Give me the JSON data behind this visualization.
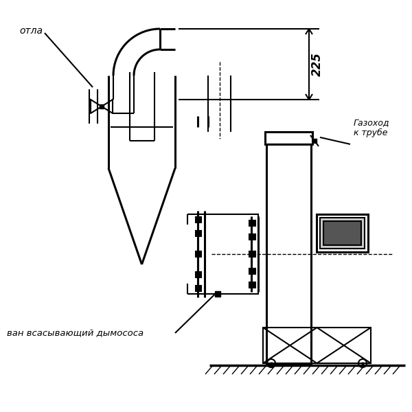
{
  "bg_color": "#ffffff",
  "line_color": "#000000",
  "lw": 1.5,
  "tlw": 2.2,
  "label_kotla": "отла",
  "label_gazohod": "Газоход\nк трубе",
  "label_vsan": "всасывающий дымососа",
  "label_dim": "225"
}
